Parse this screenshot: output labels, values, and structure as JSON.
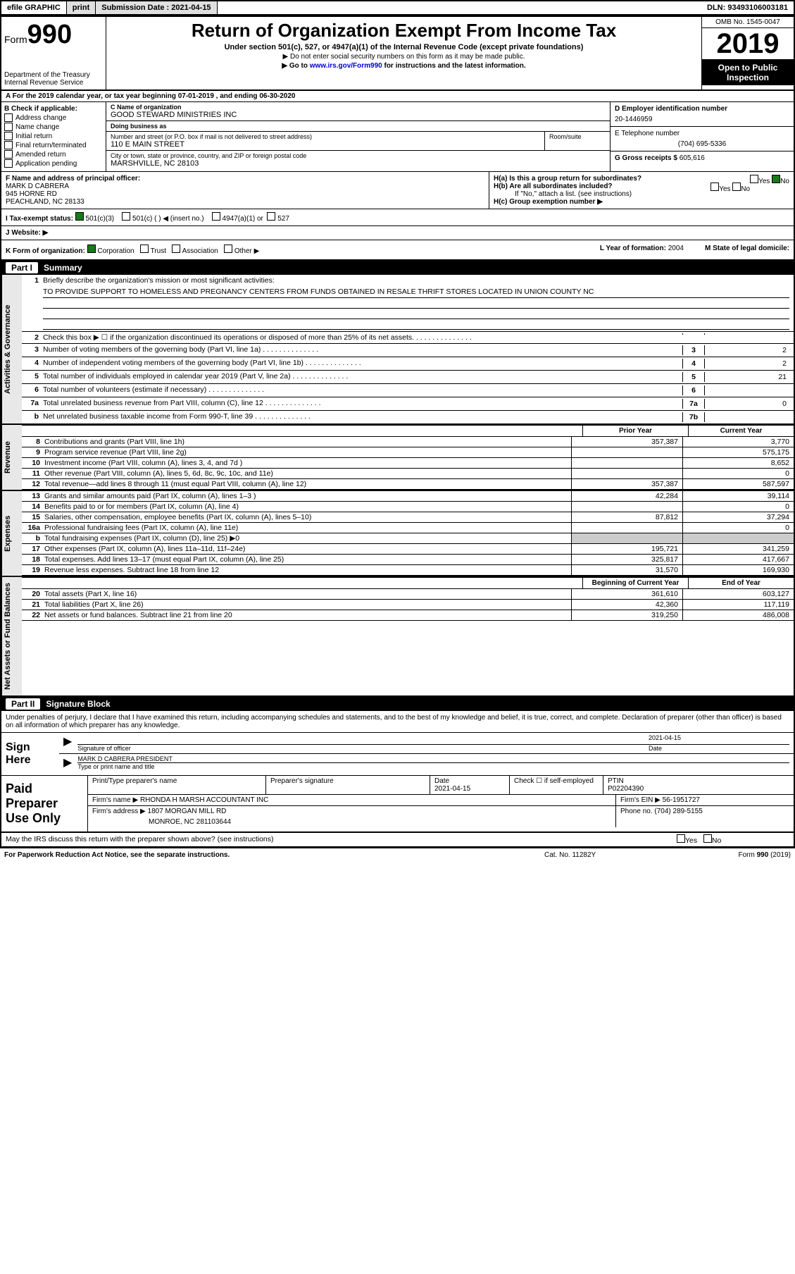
{
  "colors": {
    "text": "#000000",
    "bg": "#ffffff",
    "header_bg": "#000000",
    "header_fg": "#ffffff",
    "checked": "#1a7a1a",
    "gray_fill": "#cccccc",
    "side_bg": "#e8e8e8",
    "link": "#0000cc"
  },
  "topbar": {
    "efile": "efile GRAPHIC",
    "print": "print",
    "sub_label": "Submission Date :",
    "sub_date": "2021-04-15",
    "dln_label": "DLN:",
    "dln": "93493106003181"
  },
  "header": {
    "form_small": "Form",
    "form_big": "990",
    "dept": "Department of the Treasury\nInternal Revenue Service",
    "title": "Return of Organization Exempt From Income Tax",
    "sub1": "Under section 501(c), 527, or 4947(a)(1) of the Internal Revenue Code (except private foundations)",
    "sub2": "▶ Do not enter social security numbers on this form as it may be made public.",
    "sub3_pre": "▶ Go to ",
    "sub3_link": "www.irs.gov/Form990",
    "sub3_post": " for instructions and the latest information.",
    "omb": "OMB No. 1545-0047",
    "year": "2019",
    "open": "Open to Public Inspection"
  },
  "lineA": "A For the 2019 calendar year, or tax year beginning 07-01-2019    , and ending 06-30-2020",
  "blockB": {
    "label": "B Check if applicable:",
    "items": [
      "Address change",
      "Name change",
      "Initial return",
      "Final return/terminated",
      "Amended return",
      "Application pending"
    ]
  },
  "blockC": {
    "name_lbl": "C Name of organization",
    "name": "GOOD STEWARD MINISTRIES INC",
    "dba_lbl": "Doing business as",
    "dba": "",
    "addr_lbl": "Number and street (or P.O. box if mail is not delivered to street address)",
    "addr": "110 E MAIN STREET",
    "room_lbl": "Room/suite",
    "city_lbl": "City or town, state or province, country, and ZIP or foreign postal code",
    "city": "MARSHVILLE, NC  28103"
  },
  "blockD": {
    "lbl": "D Employer identification number",
    "val": "20-1446959"
  },
  "blockE": {
    "lbl": "E Telephone number",
    "val": "(704) 695-5336"
  },
  "blockG": {
    "lbl": "G Gross receipts $",
    "val": "605,616"
  },
  "blockF": {
    "lbl": "F  Name and address of principal officer:",
    "name": "MARK D CABRERA",
    "addr1": "945 HORNE RD",
    "addr2": "PEACHLAND, NC  28133"
  },
  "blockH": {
    "a_lbl": "H(a)  Is this a group return for subordinates?",
    "a_yes": "Yes",
    "a_no": "No",
    "a_checked": "No",
    "b_lbl": "H(b)  Are all subordinates included?",
    "b_note": "If \"No,\" attach a list. (see instructions)",
    "c_lbl": "H(c)  Group exemption number ▶"
  },
  "rowI": {
    "lbl": "I   Tax-exempt status:",
    "c1": "501(c)(3)",
    "c1_checked": true,
    "c2": "501(c) (  ) ◀ (insert no.)",
    "c3": "4947(a)(1) or",
    "c4": "527"
  },
  "rowJ": {
    "lbl": "J   Website: ▶",
    "val": ""
  },
  "rowK": {
    "lbl": "K Form of organization:",
    "c1": "Corporation",
    "c1_checked": true,
    "c2": "Trust",
    "c3": "Association",
    "c4": "Other ▶",
    "l_lbl": "L Year of formation:",
    "l_val": "2004",
    "m_lbl": "M State of legal domicile:",
    "m_val": ""
  },
  "part1": {
    "num": "Part I",
    "title": "Summary"
  },
  "part2": {
    "num": "Part II",
    "title": "Signature Block"
  },
  "sections": {
    "ag": "Activities & Governance",
    "rev": "Revenue",
    "exp": "Expenses",
    "na": "Net Assets or Fund Balances"
  },
  "line1": {
    "num": "1",
    "txt": "Briefly describe the organization's mission or most significant activities:",
    "mission": "TO PROVIDE SUPPORT TO HOMELESS AND PREGNANCY CENTERS FROM FUNDS OBTAINED IN RESALE THRIFT STORES LOCATED IN UNION COUNTY NC"
  },
  "ag_lines": [
    {
      "num": "2",
      "txt": "Check this box ▶ ☐  if the organization discontinued its operations or disposed of more than 25% of its net assets.",
      "box": "",
      "val": ""
    },
    {
      "num": "3",
      "txt": "Number of voting members of the governing body (Part VI, line 1a)",
      "box": "3",
      "val": "2"
    },
    {
      "num": "4",
      "txt": "Number of independent voting members of the governing body (Part VI, line 1b)",
      "box": "4",
      "val": "2"
    },
    {
      "num": "5",
      "txt": "Total number of individuals employed in calendar year 2019 (Part V, line 2a)",
      "box": "5",
      "val": "21"
    },
    {
      "num": "6",
      "txt": "Total number of volunteers (estimate if necessary)",
      "box": "6",
      "val": ""
    },
    {
      "num": "7a",
      "txt": "Total unrelated business revenue from Part VIII, column (C), line 12",
      "box": "7a",
      "val": "0"
    },
    {
      "num": "b",
      "txt": "Net unrelated business taxable income from Form 990-T, line 39",
      "box": "7b",
      "val": ""
    }
  ],
  "col_hdrs": {
    "py": "Prior Year",
    "cy": "Current Year",
    "by": "Beginning of Current Year",
    "ey": "End of Year"
  },
  "rev_lines": [
    {
      "num": "8",
      "txt": "Contributions and grants (Part VIII, line 1h)",
      "py": "357,387",
      "cy": "3,770"
    },
    {
      "num": "9",
      "txt": "Program service revenue (Part VIII, line 2g)",
      "py": "",
      "cy": "575,175"
    },
    {
      "num": "10",
      "txt": "Investment income (Part VIII, column (A), lines 3, 4, and 7d )",
      "py": "",
      "cy": "8,652"
    },
    {
      "num": "11",
      "txt": "Other revenue (Part VIII, column (A), lines 5, 6d, 8c, 9c, 10c, and 11e)",
      "py": "",
      "cy": "0"
    },
    {
      "num": "12",
      "txt": "Total revenue—add lines 8 through 11 (must equal Part VIII, column (A), line 12)",
      "py": "357,387",
      "cy": "587,597"
    }
  ],
  "exp_lines": [
    {
      "num": "13",
      "txt": "Grants and similar amounts paid (Part IX, column (A), lines 1–3 )",
      "py": "42,284",
      "cy": "39,114"
    },
    {
      "num": "14",
      "txt": "Benefits paid to or for members (Part IX, column (A), line 4)",
      "py": "",
      "cy": "0"
    },
    {
      "num": "15",
      "txt": "Salaries, other compensation, employee benefits (Part IX, column (A), lines 5–10)",
      "py": "87,812",
      "cy": "37,294"
    },
    {
      "num": "16a",
      "txt": "Professional fundraising fees (Part IX, column (A), line 11e)",
      "py": "",
      "cy": "0"
    },
    {
      "num": "b",
      "txt": "Total fundraising expenses (Part IX, column (D), line 25) ▶0",
      "py": "gray",
      "cy": "gray"
    },
    {
      "num": "17",
      "txt": "Other expenses (Part IX, column (A), lines 11a–11d, 11f–24e)",
      "py": "195,721",
      "cy": "341,259"
    },
    {
      "num": "18",
      "txt": "Total expenses. Add lines 13–17 (must equal Part IX, column (A), line 25)",
      "py": "325,817",
      "cy": "417,667"
    },
    {
      "num": "19",
      "txt": "Revenue less expenses. Subtract line 18 from line 12",
      "py": "31,570",
      "cy": "169,930"
    }
  ],
  "na_lines": [
    {
      "num": "20",
      "txt": "Total assets (Part X, line 16)",
      "py": "361,610",
      "cy": "603,127"
    },
    {
      "num": "21",
      "txt": "Total liabilities (Part X, line 26)",
      "py": "42,360",
      "cy": "117,119"
    },
    {
      "num": "22",
      "txt": "Net assets or fund balances. Subtract line 21 from line 20",
      "py": "319,250",
      "cy": "486,008"
    }
  ],
  "sig_intro": "Under penalties of perjury, I declare that I have examined this return, including accompanying schedules and statements, and to the best of my knowledge and belief, it is true, correct, and complete. Declaration of preparer (other than officer) is based on all information of which preparer has any knowledge.",
  "sign": {
    "label": "Sign Here",
    "sig_lbl": "Signature of officer",
    "date_lbl": "Date",
    "date": "2021-04-15",
    "name": "MARK D CABRERA  PRESIDENT",
    "name_lbl": "Type or print name and title"
  },
  "prep": {
    "label": "Paid Preparer Use Only",
    "h1": "Print/Type preparer's name",
    "h2": "Preparer's signature",
    "h3": "Date",
    "h3v": "2021-04-15",
    "h4": "Check ☐  if self-employed",
    "h5": "PTIN",
    "h5v": "P02204390",
    "firm_lbl": "Firm's name    ▶",
    "firm": "RHONDA H MARSH ACCOUNTANT INC",
    "ein_lbl": "Firm's EIN ▶",
    "ein": "56-1951727",
    "addr_lbl": "Firm's address ▶",
    "addr1": "1807 MORGAN MILL RD",
    "addr2": "MONROE, NC  281103644",
    "phone_lbl": "Phone no.",
    "phone": "(704) 289-5155"
  },
  "discuss": {
    "txt": "May the IRS discuss this return with the preparer shown above? (see instructions)",
    "yes": "Yes",
    "no": "No"
  },
  "footer": {
    "left": "For Paperwork Reduction Act Notice, see the separate instructions.",
    "mid": "Cat. No. 11282Y",
    "right": "Form 990 (2019)"
  }
}
